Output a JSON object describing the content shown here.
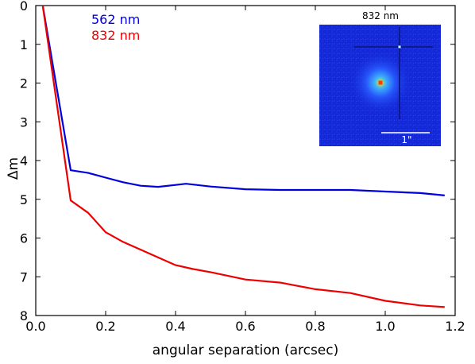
{
  "chart_data": {
    "type": "line",
    "xlabel": "angular separation (arcsec)",
    "ylabel": "Δm",
    "xlim": [
      0.0,
      1.2
    ],
    "ylim": [
      8,
      0
    ],
    "y_inverted": true,
    "grid": false,
    "legend_position": "top-left",
    "x_ticks": [
      "0.0",
      "0.2",
      "0.4",
      "0.6",
      "0.8",
      "1.0",
      "1.2"
    ],
    "y_ticks": [
      "0",
      "1",
      "2",
      "3",
      "4",
      "5",
      "6",
      "7",
      "8"
    ],
    "series": [
      {
        "name": "562 nm",
        "color": "#0000dd",
        "x": [
          0.0,
          0.02,
          0.1,
          0.15,
          0.2,
          0.25,
          0.3,
          0.35,
          0.4,
          0.43,
          0.5,
          0.6,
          0.7,
          0.8,
          0.9,
          1.0,
          1.1,
          1.17
        ],
        "y": [
          -0.3,
          0.0,
          4.25,
          4.32,
          4.44,
          4.56,
          4.65,
          4.68,
          4.63,
          4.6,
          4.67,
          4.74,
          4.76,
          4.76,
          4.76,
          4.8,
          4.84,
          4.9
        ]
      },
      {
        "name": "832 nm",
        "color": "#ee0000",
        "x": [
          0.0,
          0.02,
          0.1,
          0.15,
          0.2,
          0.25,
          0.3,
          0.35,
          0.4,
          0.45,
          0.5,
          0.6,
          0.7,
          0.8,
          0.9,
          1.0,
          1.1,
          1.17
        ],
        "y": [
          -0.3,
          0.0,
          5.03,
          5.35,
          5.85,
          6.1,
          6.3,
          6.5,
          6.7,
          6.8,
          6.88,
          7.07,
          7.15,
          7.32,
          7.42,
          7.62,
          7.74,
          7.78
        ]
      }
    ],
    "inset": {
      "title": "832 nm",
      "scale_bar_label": "1\"",
      "background_color": "#1428d8",
      "description_colors": [
        "#1428d8",
        "#3c78ff",
        "#ffff00",
        "#ff3c00"
      ]
    }
  }
}
